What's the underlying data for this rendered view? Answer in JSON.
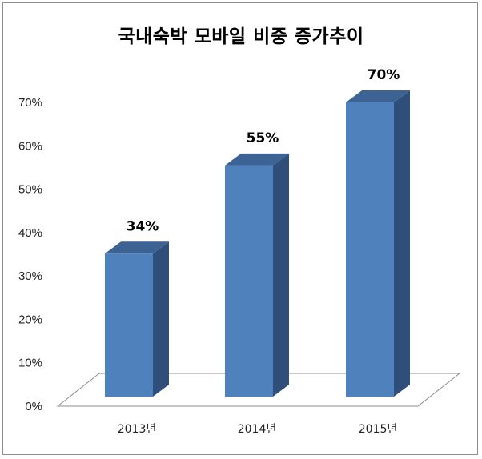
{
  "chart_data": {
    "type": "bar",
    "title": "국내숙박 모바일 비중 증가추이",
    "categories": [
      "2013년",
      "2014년",
      "2015년"
    ],
    "values": [
      34,
      55,
      70
    ],
    "data_labels": [
      "34%",
      "55%",
      "70%"
    ],
    "y_ticks": [
      "0%",
      "10%",
      "20%",
      "30%",
      "40%",
      "50%",
      "60%",
      "70%"
    ],
    "ylim": [
      0,
      70
    ],
    "style": "3d-column",
    "grid": false,
    "legend": "none",
    "colors": {
      "bar_front": "#4f81bd",
      "bar_side": "#2f4f7a",
      "bar_top": "#3d6394"
    }
  }
}
